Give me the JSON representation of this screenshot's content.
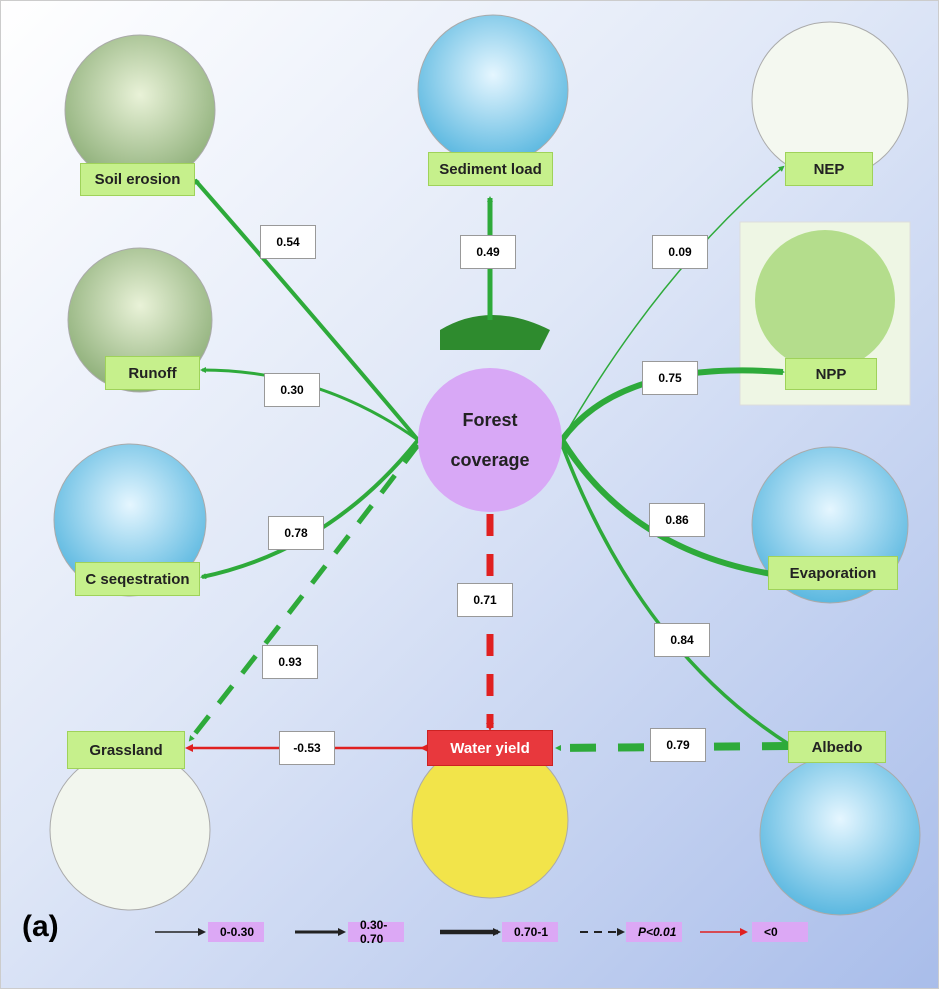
{
  "panel_label": "(a)",
  "center": {
    "label": "Forest coverage"
  },
  "nodes": [
    {
      "label": "Soil erosion"
    },
    {
      "label": "Sediment load"
    },
    {
      "label": "NEP"
    },
    {
      "label": "Runoff"
    },
    {
      "label": "NPP"
    },
    {
      "label": "C seqestration"
    },
    {
      "label": "Evaporation"
    },
    {
      "label": "Grassland"
    },
    {
      "label": "Water yield"
    },
    {
      "label": "Albedo"
    }
  ],
  "edges": [
    {
      "label": "0.54"
    },
    {
      "label": "0.49"
    },
    {
      "label": "0.09"
    },
    {
      "label": "0.30"
    },
    {
      "label": "0.75"
    },
    {
      "label": "0.78"
    },
    {
      "label": "0.86"
    },
    {
      "label": "0.93"
    },
    {
      "label": "0.71"
    },
    {
      "label": "0.84"
    },
    {
      "label": "-0.53"
    },
    {
      "label": "0.79"
    }
  ],
  "legend": [
    {
      "label": "0-0.30"
    },
    {
      "label": "0.30-0.70"
    },
    {
      "label": "0.70-1"
    },
    {
      "label": "P<0.01"
    },
    {
      "label": "<0"
    }
  ]
}
